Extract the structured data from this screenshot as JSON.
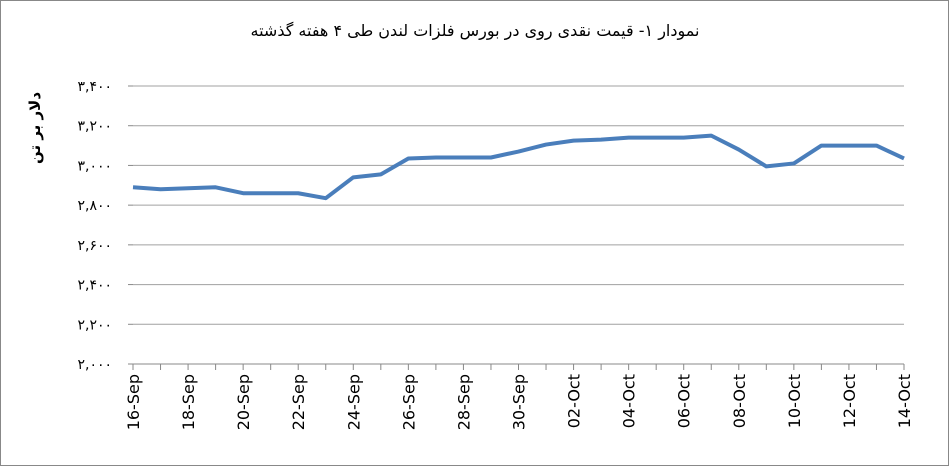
{
  "chart_data": {
    "type": "line",
    "title": "نمودار ۱- قیمت نقدی روی  در بورس فلزات لندن طی ۴ هفته گذشته",
    "y_label": "دلار بر تن",
    "categories": [
      "16-Sep",
      null,
      "18-Sep",
      null,
      "20-Sep",
      null,
      "22-Sep",
      null,
      "24-Sep",
      null,
      "26-Sep",
      null,
      "28-Sep",
      null,
      "30-Sep",
      null,
      "02-Oct",
      null,
      "04-Oct",
      null,
      "06-Oct",
      null,
      "08-Oct",
      null,
      "10-Oct",
      null,
      "12-Oct",
      null,
      "14-Oct"
    ],
    "values": [
      2890,
      2880,
      2885,
      2890,
      2860,
      2860,
      2860,
      2835,
      2940,
      2955,
      3035,
      3040,
      3040,
      3040,
      3070,
      3105,
      3125,
      3130,
      3140,
      3140,
      3140,
      3150,
      3080,
      2995,
      3010,
      3100,
      3100,
      3100,
      3035
    ],
    "color": "#4a7ebb",
    "ylim": [
      2000,
      3400
    ],
    "yticks": [
      {
        "value": 2000,
        "label": "۲,۰۰۰"
      },
      {
        "value": 2200,
        "label": "۲,۲۰۰"
      },
      {
        "value": 2400,
        "label": "۲,۴۰۰"
      },
      {
        "value": 2600,
        "label": "۲,۶۰۰"
      },
      {
        "value": 2800,
        "label": "۲,۸۰۰"
      },
      {
        "value": 3000,
        "label": "۳,۰۰۰"
      },
      {
        "value": 3200,
        "label": "۳,۲۰۰"
      },
      {
        "value": 3400,
        "label": "۳,۴۰۰"
      }
    ],
    "grid": true
  }
}
